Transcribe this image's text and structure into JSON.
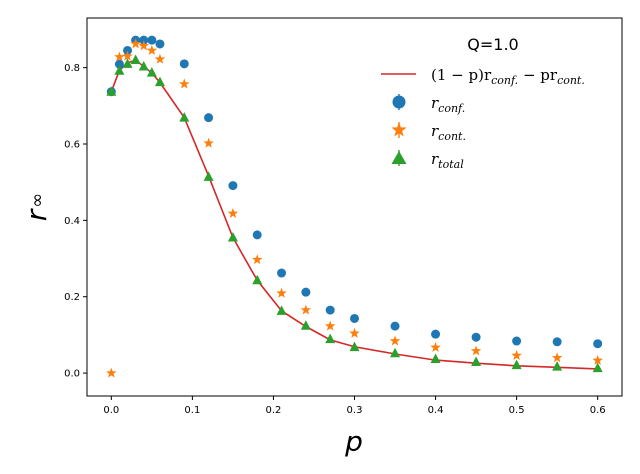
{
  "chart_data": {
    "type": "scatter",
    "title": "",
    "xlabel": "p",
    "ylabel": "r",
    "ylabel_subscript": "∞",
    "xlim": [
      -0.03,
      0.63
    ],
    "ylim": [
      -0.06,
      0.93
    ],
    "x_ticks": [
      0.0,
      0.1,
      0.2,
      0.3,
      0.4,
      0.5,
      0.6
    ],
    "x_tick_labels": [
      "0.0",
      "0.1",
      "0.2",
      "0.3",
      "0.4",
      "0.5",
      "0.6"
    ],
    "y_ticks": [
      0.0,
      0.2,
      0.4,
      0.6,
      0.8
    ],
    "y_tick_labels": [
      "0.0",
      "0.2",
      "0.4",
      "0.6",
      "0.8"
    ],
    "grid": false,
    "legend": {
      "placement": "top-right",
      "title": "Q=1.0",
      "entries": [
        {
          "prefix": "(1 − p)r",
          "sub1": "conf.",
          "middle": " − pr",
          "sub2": "cont.",
          "series": "line"
        },
        {
          "base": "r",
          "sub": "conf.",
          "series": "conf"
        },
        {
          "base": "r",
          "sub": "cont.",
          "series": "cont"
        },
        {
          "base": "r",
          "sub": "total",
          "series": "total"
        }
      ]
    },
    "series": [
      {
        "name": "r_conf.",
        "key": "conf",
        "marker": "circle",
        "color": "#1f77b4",
        "x": [
          0.0,
          0.01,
          0.02,
          0.03,
          0.04,
          0.05,
          0.06,
          0.09,
          0.12,
          0.15,
          0.18,
          0.21,
          0.24,
          0.27,
          0.3,
          0.35,
          0.4,
          0.45,
          0.5,
          0.55,
          0.6
        ],
        "y": [
          0.737,
          0.809,
          0.845,
          0.872,
          0.872,
          0.872,
          0.862,
          0.81,
          0.669,
          0.491,
          0.362,
          0.262,
          0.212,
          0.165,
          0.143,
          0.123,
          0.102,
          0.094,
          0.084,
          0.082,
          0.077
        ]
      },
      {
        "name": "r_cont.",
        "key": "cont",
        "marker": "star",
        "color": "#ff7f0e",
        "x": [
          0.0,
          0.01,
          0.02,
          0.03,
          0.04,
          0.05,
          0.06,
          0.09,
          0.12,
          0.15,
          0.18,
          0.21,
          0.24,
          0.27,
          0.3,
          0.35,
          0.4,
          0.45,
          0.5,
          0.55,
          0.6
        ],
        "y": [
          0.0,
          0.828,
          0.83,
          0.862,
          0.857,
          0.845,
          0.822,
          0.757,
          0.602,
          0.418,
          0.297,
          0.209,
          0.165,
          0.123,
          0.104,
          0.084,
          0.067,
          0.058,
          0.046,
          0.04,
          0.033
        ]
      },
      {
        "name": "r_total",
        "key": "total",
        "marker": "triangle",
        "color": "#2ca02c",
        "x": [
          0.0,
          0.01,
          0.02,
          0.03,
          0.04,
          0.05,
          0.06,
          0.09,
          0.12,
          0.15,
          0.18,
          0.21,
          0.24,
          0.27,
          0.3,
          0.35,
          0.4,
          0.45,
          0.5,
          0.55,
          0.6
        ],
        "y": [
          0.737,
          0.792,
          0.81,
          0.82,
          0.803,
          0.787,
          0.762,
          0.669,
          0.514,
          0.355,
          0.243,
          0.163,
          0.124,
          0.089,
          0.068,
          0.052,
          0.037,
          0.029,
          0.021,
          0.017,
          0.013
        ]
      },
      {
        "name": "(1-p)r_conf. - pr_cont.",
        "key": "line",
        "marker": "line",
        "color": "#d62728",
        "x": [
          0.0,
          0.01,
          0.02,
          0.03,
          0.04,
          0.05,
          0.06,
          0.09,
          0.12,
          0.15,
          0.18,
          0.21,
          0.24,
          0.27,
          0.3,
          0.35,
          0.4,
          0.45,
          0.5,
          0.55,
          0.6
        ],
        "y": [
          0.737,
          0.793,
          0.812,
          0.82,
          0.803,
          0.786,
          0.761,
          0.669,
          0.516,
          0.355,
          0.243,
          0.163,
          0.122,
          0.087,
          0.069,
          0.05,
          0.034,
          0.026,
          0.019,
          0.015,
          0.011
        ]
      }
    ]
  }
}
